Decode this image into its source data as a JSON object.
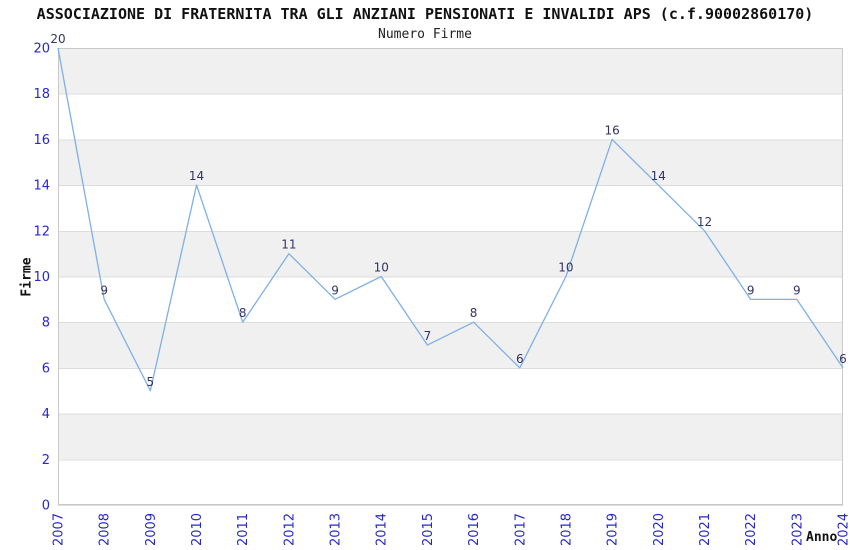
{
  "header": {
    "title": "ASSOCIAZIONE DI FRATERNITA TRA GLI ANZIANI PENSIONATI E INVALIDI APS (c.f.90002860170)",
    "subtitle": "Numero Firme"
  },
  "chart_data": {
    "type": "line",
    "title": "ASSOCIAZIONE DI FRATERNITA TRA GLI ANZIANI PENSIONATI E INVALIDI APS (c.f.90002860170)",
    "subtitle": "Numero Firme",
    "xlabel": "Anno",
    "ylabel": "Firme",
    "categories": [
      "2007",
      "2008",
      "2009",
      "2010",
      "2011",
      "2012",
      "2013",
      "2014",
      "2015",
      "2016",
      "2017",
      "2018",
      "2019",
      "2020",
      "2021",
      "2022",
      "2023",
      "2024"
    ],
    "values": [
      20,
      9,
      5,
      14,
      8,
      11,
      9,
      10,
      7,
      8,
      6,
      10,
      16,
      14,
      12,
      9,
      9,
      6
    ],
    "ylim": [
      0,
      20
    ],
    "ytick_step": 2,
    "yticks": [
      0,
      2,
      4,
      6,
      8,
      10,
      12,
      14,
      16,
      18,
      20
    ],
    "grid": "horizontal-bands-alternating",
    "legend": "none",
    "data_labels_visible": true,
    "x_tick_rotation_deg": -90,
    "colors": {
      "line": "#7FB0E6",
      "tick_label": "#2727CE",
      "data_label": "#333366",
      "band_fill": "#F0F0F0",
      "band_alt_fill": "#FFFFFF",
      "gridline": "#DCDCDC",
      "frame": "#C9C9C9",
      "title_text": "#111111"
    }
  }
}
